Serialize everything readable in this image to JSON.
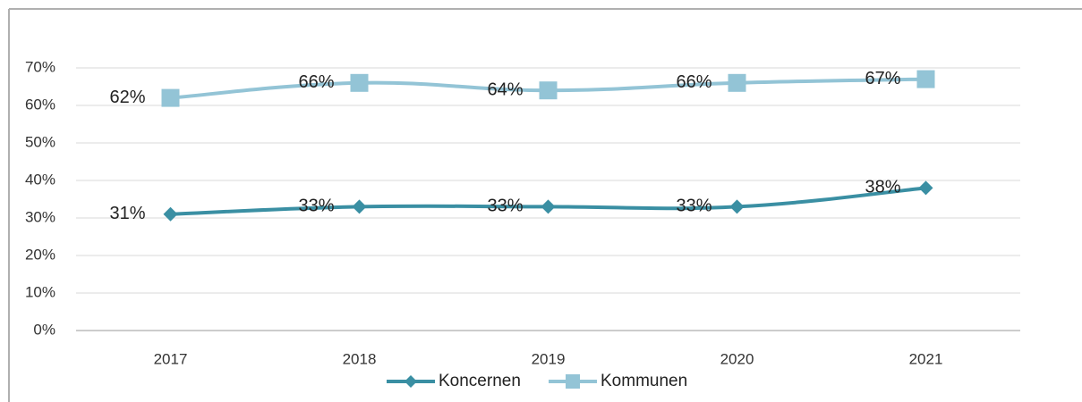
{
  "chart_data": {
    "type": "line",
    "categories": [
      "2017",
      "2018",
      "2019",
      "2020",
      "2021"
    ],
    "series": [
      {
        "name": "Koncernen",
        "color": "#3a8fa3",
        "marker": "diamond",
        "values": [
          31,
          33,
          33,
          33,
          38
        ],
        "value_labels": [
          "31%",
          "33%",
          "33%",
          "33%",
          "38%"
        ]
      },
      {
        "name": "Kommunen",
        "color": "#93c4d6",
        "marker": "square",
        "values": [
          62,
          66,
          64,
          66,
          67
        ],
        "value_labels": [
          "62%",
          "66%",
          "64%",
          "66%",
          "67%"
        ]
      }
    ],
    "ylim": [
      0,
      70
    ],
    "yticks": [
      {
        "value": 0,
        "label": "0%"
      },
      {
        "value": 10,
        "label": "10%"
      },
      {
        "value": 20,
        "label": "20%"
      },
      {
        "value": 30,
        "label": "30%"
      },
      {
        "value": 40,
        "label": "40%"
      },
      {
        "value": 50,
        "label": "50%"
      },
      {
        "value": 60,
        "label": "60%"
      },
      {
        "value": 70,
        "label": "70%"
      }
    ],
    "grid": true,
    "legend": "bottom"
  }
}
